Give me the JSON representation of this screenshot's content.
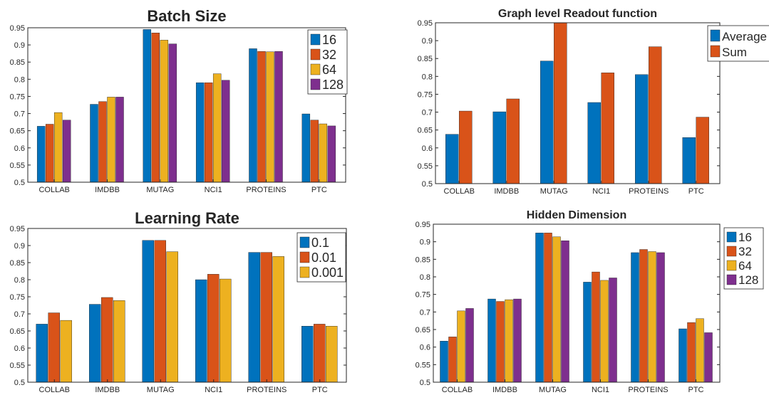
{
  "palette": [
    "#0072BD",
    "#D95319",
    "#EDB120",
    "#7E2F8E"
  ],
  "chart_data": [
    {
      "type": "bar",
      "title": "Batch Size",
      "xlabel": "",
      "ylabel": "",
      "categories": [
        "COLLAB",
        "IMDBB",
        "MUTAG",
        "NCI1",
        "PROTEINS",
        "PTC"
      ],
      "ylim": [
        0.5,
        0.95
      ],
      "yticks": [
        "0.5",
        "0.55",
        "0.6",
        "0.65",
        "0.7",
        "0.75",
        "0.8",
        "0.85",
        "0.9",
        "0.95"
      ],
      "grid": false,
      "legend": "top-right",
      "series": [
        {
          "name": "16",
          "values": [
            0.663,
            0.727,
            0.945,
            0.79,
            0.889,
            0.699
          ]
        },
        {
          "name": "32",
          "values": [
            0.669,
            0.735,
            0.935,
            0.79,
            0.881,
            0.681
          ]
        },
        {
          "name": "64",
          "values": [
            0.703,
            0.748,
            0.914,
            0.816,
            0.88,
            0.67
          ]
        },
        {
          "name": "128",
          "values": [
            0.681,
            0.748,
            0.903,
            0.797,
            0.881,
            0.664
          ]
        }
      ]
    },
    {
      "type": "bar",
      "title": "Graph level Readout function",
      "xlabel": "",
      "ylabel": "",
      "categories": [
        "COLLAB",
        "IMDBB",
        "MUTAG",
        "NCI1",
        "PROTEINS",
        "PTC"
      ],
      "ylim": [
        0.5,
        0.95
      ],
      "yticks": [
        "0.5",
        "0.55",
        "0.6",
        "0.65",
        "0.7",
        "0.75",
        "0.8",
        "0.85",
        "0.9",
        "0.95"
      ],
      "grid": false,
      "legend": "top-right",
      "series": [
        {
          "name": "Average",
          "values": [
            0.638,
            0.701,
            0.843,
            0.727,
            0.805,
            0.629
          ]
        },
        {
          "name": "Sum",
          "values": [
            0.703,
            0.737,
            0.95,
            0.81,
            0.883,
            0.686
          ]
        }
      ]
    },
    {
      "type": "bar",
      "title": "Learning Rate",
      "xlabel": "",
      "ylabel": "",
      "categories": [
        "COLLAB",
        "IMDBB",
        "MUTAG",
        "NCI1",
        "PROTEINS",
        "PTC"
      ],
      "ylim": [
        0.5,
        0.95
      ],
      "yticks": [
        "0.5",
        "0.55",
        "0.6",
        "0.65",
        "0.7",
        "0.75",
        "0.8",
        "0.85",
        "0.9",
        "0.95"
      ],
      "grid": false,
      "legend": "top-right",
      "series": [
        {
          "name": "0.1",
          "values": [
            0.67,
            0.728,
            0.915,
            0.8,
            0.88,
            0.664
          ]
        },
        {
          "name": "0.01",
          "values": [
            0.703,
            0.748,
            0.915,
            0.816,
            0.88,
            0.67
          ]
        },
        {
          "name": "0.001",
          "values": [
            0.681,
            0.739,
            0.882,
            0.802,
            0.868,
            0.664
          ]
        }
      ]
    },
    {
      "type": "bar",
      "title": "Hidden Dimension",
      "xlabel": "",
      "ylabel": "",
      "categories": [
        "COLLAB",
        "IMDBB",
        "MUTAG",
        "NCI1",
        "PROTEINS",
        "PTC"
      ],
      "ylim": [
        0.5,
        0.95
      ],
      "yticks": [
        "0.5",
        "0.55",
        "0.6",
        "0.65",
        "0.7",
        "0.75",
        "0.8",
        "0.85",
        "0.9",
        "0.95"
      ],
      "grid": false,
      "legend": "top-right",
      "series": [
        {
          "name": "16",
          "values": [
            0.617,
            0.737,
            0.925,
            0.785,
            0.869,
            0.652
          ]
        },
        {
          "name": "32",
          "values": [
            0.629,
            0.73,
            0.925,
            0.814,
            0.878,
            0.67
          ]
        },
        {
          "name": "64",
          "values": [
            0.703,
            0.735,
            0.914,
            0.79,
            0.872,
            0.681
          ]
        },
        {
          "name": "128",
          "values": [
            0.71,
            0.737,
            0.903,
            0.797,
            0.869,
            0.641
          ]
        }
      ]
    }
  ]
}
